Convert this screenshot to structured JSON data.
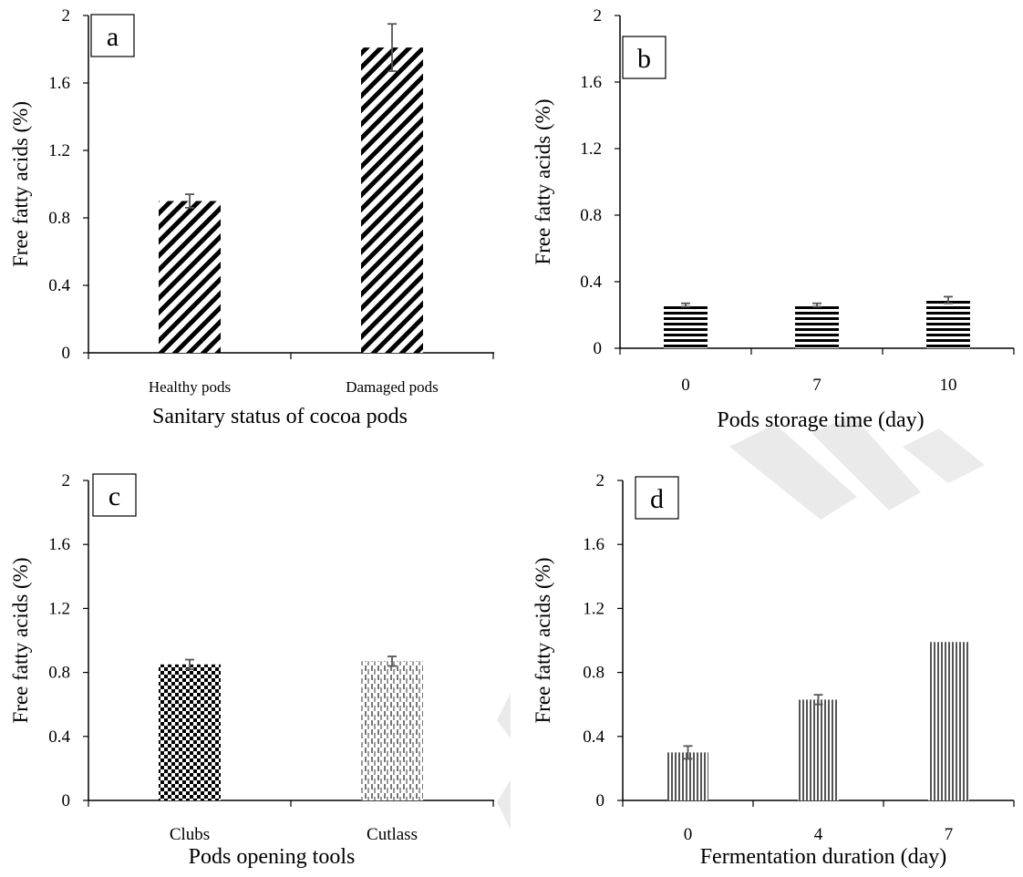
{
  "chart_data": [
    {
      "type": "bar",
      "panel_label": "a",
      "categories": [
        "Healthy pods",
        "Damaged pods"
      ],
      "values": [
        0.9,
        1.81
      ],
      "errors": [
        0.04,
        0.14
      ],
      "ylabel": "Free fatty acids  (%)",
      "xlabel": "Sanitary status of cocoa pods",
      "ylim": [
        0,
        2
      ],
      "yticks": [
        "0",
        "0.4",
        "0.8",
        "1.2",
        "1.6",
        "2"
      ],
      "pattern": "diagonal-stripes",
      "grid": false,
      "legend": "none"
    },
    {
      "type": "bar",
      "panel_label": "b",
      "categories": [
        "0",
        "7",
        "10"
      ],
      "values": [
        0.26,
        0.26,
        0.29
      ],
      "errors": [
        0.01,
        0.01,
        0.02
      ],
      "ylabel": "Free fatty acids (%)",
      "xlabel": "Pods storage time (day)",
      "ylim": [
        0,
        2
      ],
      "yticks": [
        "0",
        "0.4",
        "0.8",
        "1.2",
        "1.6",
        "2"
      ],
      "pattern": "horizontal-stripes",
      "grid": false,
      "legend": "none"
    },
    {
      "type": "bar",
      "panel_label": "c",
      "categories": [
        "Clubs",
        "Cutlass"
      ],
      "values": [
        0.85,
        0.87
      ],
      "errors": [
        0.03,
        0.03
      ],
      "ylabel": "Free fatty acids (%)",
      "xlabel": "Pods opening tools",
      "ylim": [
        0,
        2
      ],
      "yticks": [
        "0",
        "0.4",
        "0.8",
        "1.2",
        "1.6",
        "2"
      ],
      "pattern": "checker-and-dashed",
      "grid": false,
      "legend": "none"
    },
    {
      "type": "bar",
      "panel_label": "d",
      "categories": [
        "0",
        "4",
        "7"
      ],
      "values": [
        0.3,
        0.63,
        0.99
      ],
      "errors": [
        0.04,
        0.03,
        0.0
      ],
      "ylabel": "Free fatty acids (%)",
      "xlabel": "Fermentation duration (day)",
      "ylim": [
        0,
        2
      ],
      "yticks": [
        "0",
        "0.4",
        "0.8",
        "1.2",
        "1.6",
        "2"
      ],
      "pattern": "vertical-stripes",
      "grid": false,
      "legend": "none"
    }
  ]
}
